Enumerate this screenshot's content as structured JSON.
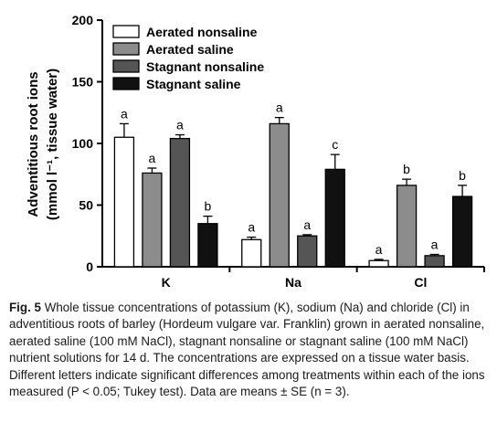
{
  "chart_data": {
    "type": "bar",
    "categories": [
      "K",
      "Na",
      "Cl"
    ],
    "ylabel_line1": "Adventitious root ions",
    "ylabel_line2": "(mmol l⁻¹, tissue water)",
    "ylim": [
      0,
      200
    ],
    "yticks": [
      0,
      50,
      100,
      150,
      200
    ],
    "legend_position": "top-left",
    "series": [
      {
        "name": "Aerated nonsaline",
        "color": "#ffffff",
        "values": [
          105,
          22,
          5
        ],
        "errors": [
          11,
          2,
          1
        ],
        "letters": [
          "a",
          "a",
          "a"
        ]
      },
      {
        "name": "Aerated saline",
        "color": "#8c8c8c",
        "values": [
          76,
          116,
          66
        ],
        "errors": [
          4,
          5,
          5
        ],
        "letters": [
          "a",
          "a",
          "b"
        ]
      },
      {
        "name": "Stagnant nonsaline",
        "color": "#555555",
        "values": [
          104,
          25,
          9
        ],
        "errors": [
          3,
          1,
          1
        ],
        "letters": [
          "a",
          "a",
          "a"
        ]
      },
      {
        "name": "Stagnant saline",
        "color": "#111111",
        "values": [
          35,
          79,
          57
        ],
        "errors": [
          6,
          12,
          9
        ],
        "letters": [
          "b",
          "c",
          "b"
        ]
      }
    ]
  },
  "caption": {
    "fig_label": "Fig. 5",
    "text": "Whole tissue concentrations of potassium (K), sodium (Na) and chloride (Cl) in adventitious roots of barley (Hordeum vulgare var. Franklin) grown in aerated nonsaline, aerated saline (100 mM NaCl), stagnant nonsaline or stagnant saline (100 mM NaCl) nutrient solutions for 14 d. The concentrations are expressed on a tissue water basis. Different letters indicate significant differences among treatments within each of the ions measured (P < 0.05; Tukey test). Data are means ± SE (n = 3)."
  }
}
